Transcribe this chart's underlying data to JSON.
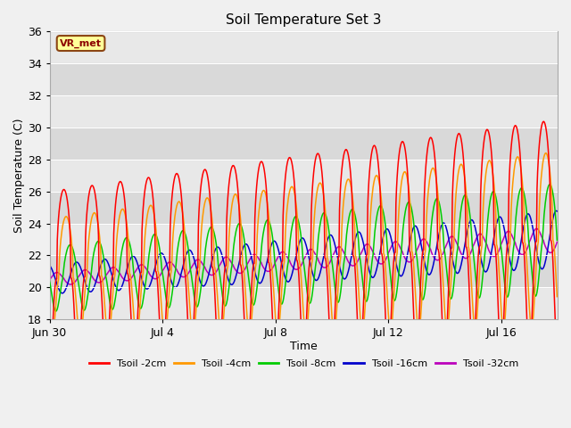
{
  "title": "Soil Temperature Set 3",
  "xlabel": "Time",
  "ylabel": "Soil Temperature (C)",
  "ylim": [
    18,
    36
  ],
  "yticks": [
    18,
    20,
    22,
    24,
    26,
    28,
    30,
    32,
    34,
    36
  ],
  "xlim": [
    0,
    18
  ],
  "xtick_labels": [
    "Jun 30",
    "Jul 4",
    "Jul 8",
    "Jul 12",
    "Jul 16"
  ],
  "xtick_positions": [
    0,
    4,
    8,
    12,
    16
  ],
  "colors": {
    "Tsoil -2cm": "#ff0000",
    "Tsoil -4cm": "#ff9900",
    "Tsoil -8cm": "#00cc00",
    "Tsoil -16cm": "#0000cc",
    "Tsoil -32cm": "#bb00bb"
  },
  "fig_facecolor": "#f0f0f0",
  "ax_facecolor": "#e8e8e8",
  "annotation_text": "VR_met",
  "annotation_fc": "#ffff99",
  "annotation_ec": "#8b4513",
  "annotation_tc": "#8b0000",
  "band_color": "#d0d0d0",
  "grid_color": "#ffffff",
  "trend_base": 20.5,
  "trend_gain": 2.5,
  "period": 1.0,
  "depths": [
    2,
    4,
    8,
    16,
    32
  ],
  "amp_start": [
    5.5,
    3.8,
    2.0,
    0.9,
    0.4
  ],
  "amp_end": [
    7.5,
    5.5,
    3.5,
    1.8,
    0.8
  ],
  "phase_lag": [
    0.0,
    0.08,
    0.22,
    0.45,
    0.75
  ],
  "skew": [
    2.5,
    2.0,
    1.5,
    1.0,
    0.8
  ],
  "linewidth": 1.1
}
